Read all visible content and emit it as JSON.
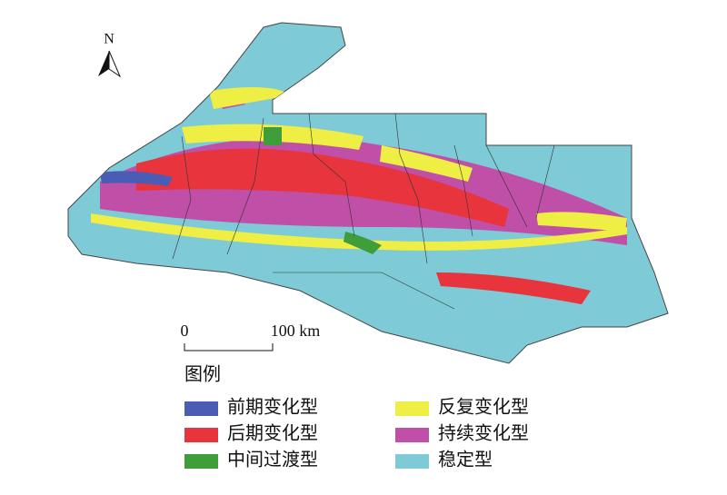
{
  "north_arrow": {
    "label": "N"
  },
  "scale_bar": {
    "start_label": "0",
    "end_label": "100 km"
  },
  "legend": {
    "title": "图例",
    "items": [
      {
        "label": "前期变化型",
        "color": "#4a5cb4"
      },
      {
        "label": "反复变化型",
        "color": "#eeee44"
      },
      {
        "label": "后期变化型",
        "color": "#e8343c"
      },
      {
        "label": "持续变化型",
        "color": "#c04fa8"
      },
      {
        "label": "中间过渡型",
        "color": "#3f9e3a"
      },
      {
        "label": "稳定型",
        "color": "#7ecad6"
      }
    ]
  }
}
